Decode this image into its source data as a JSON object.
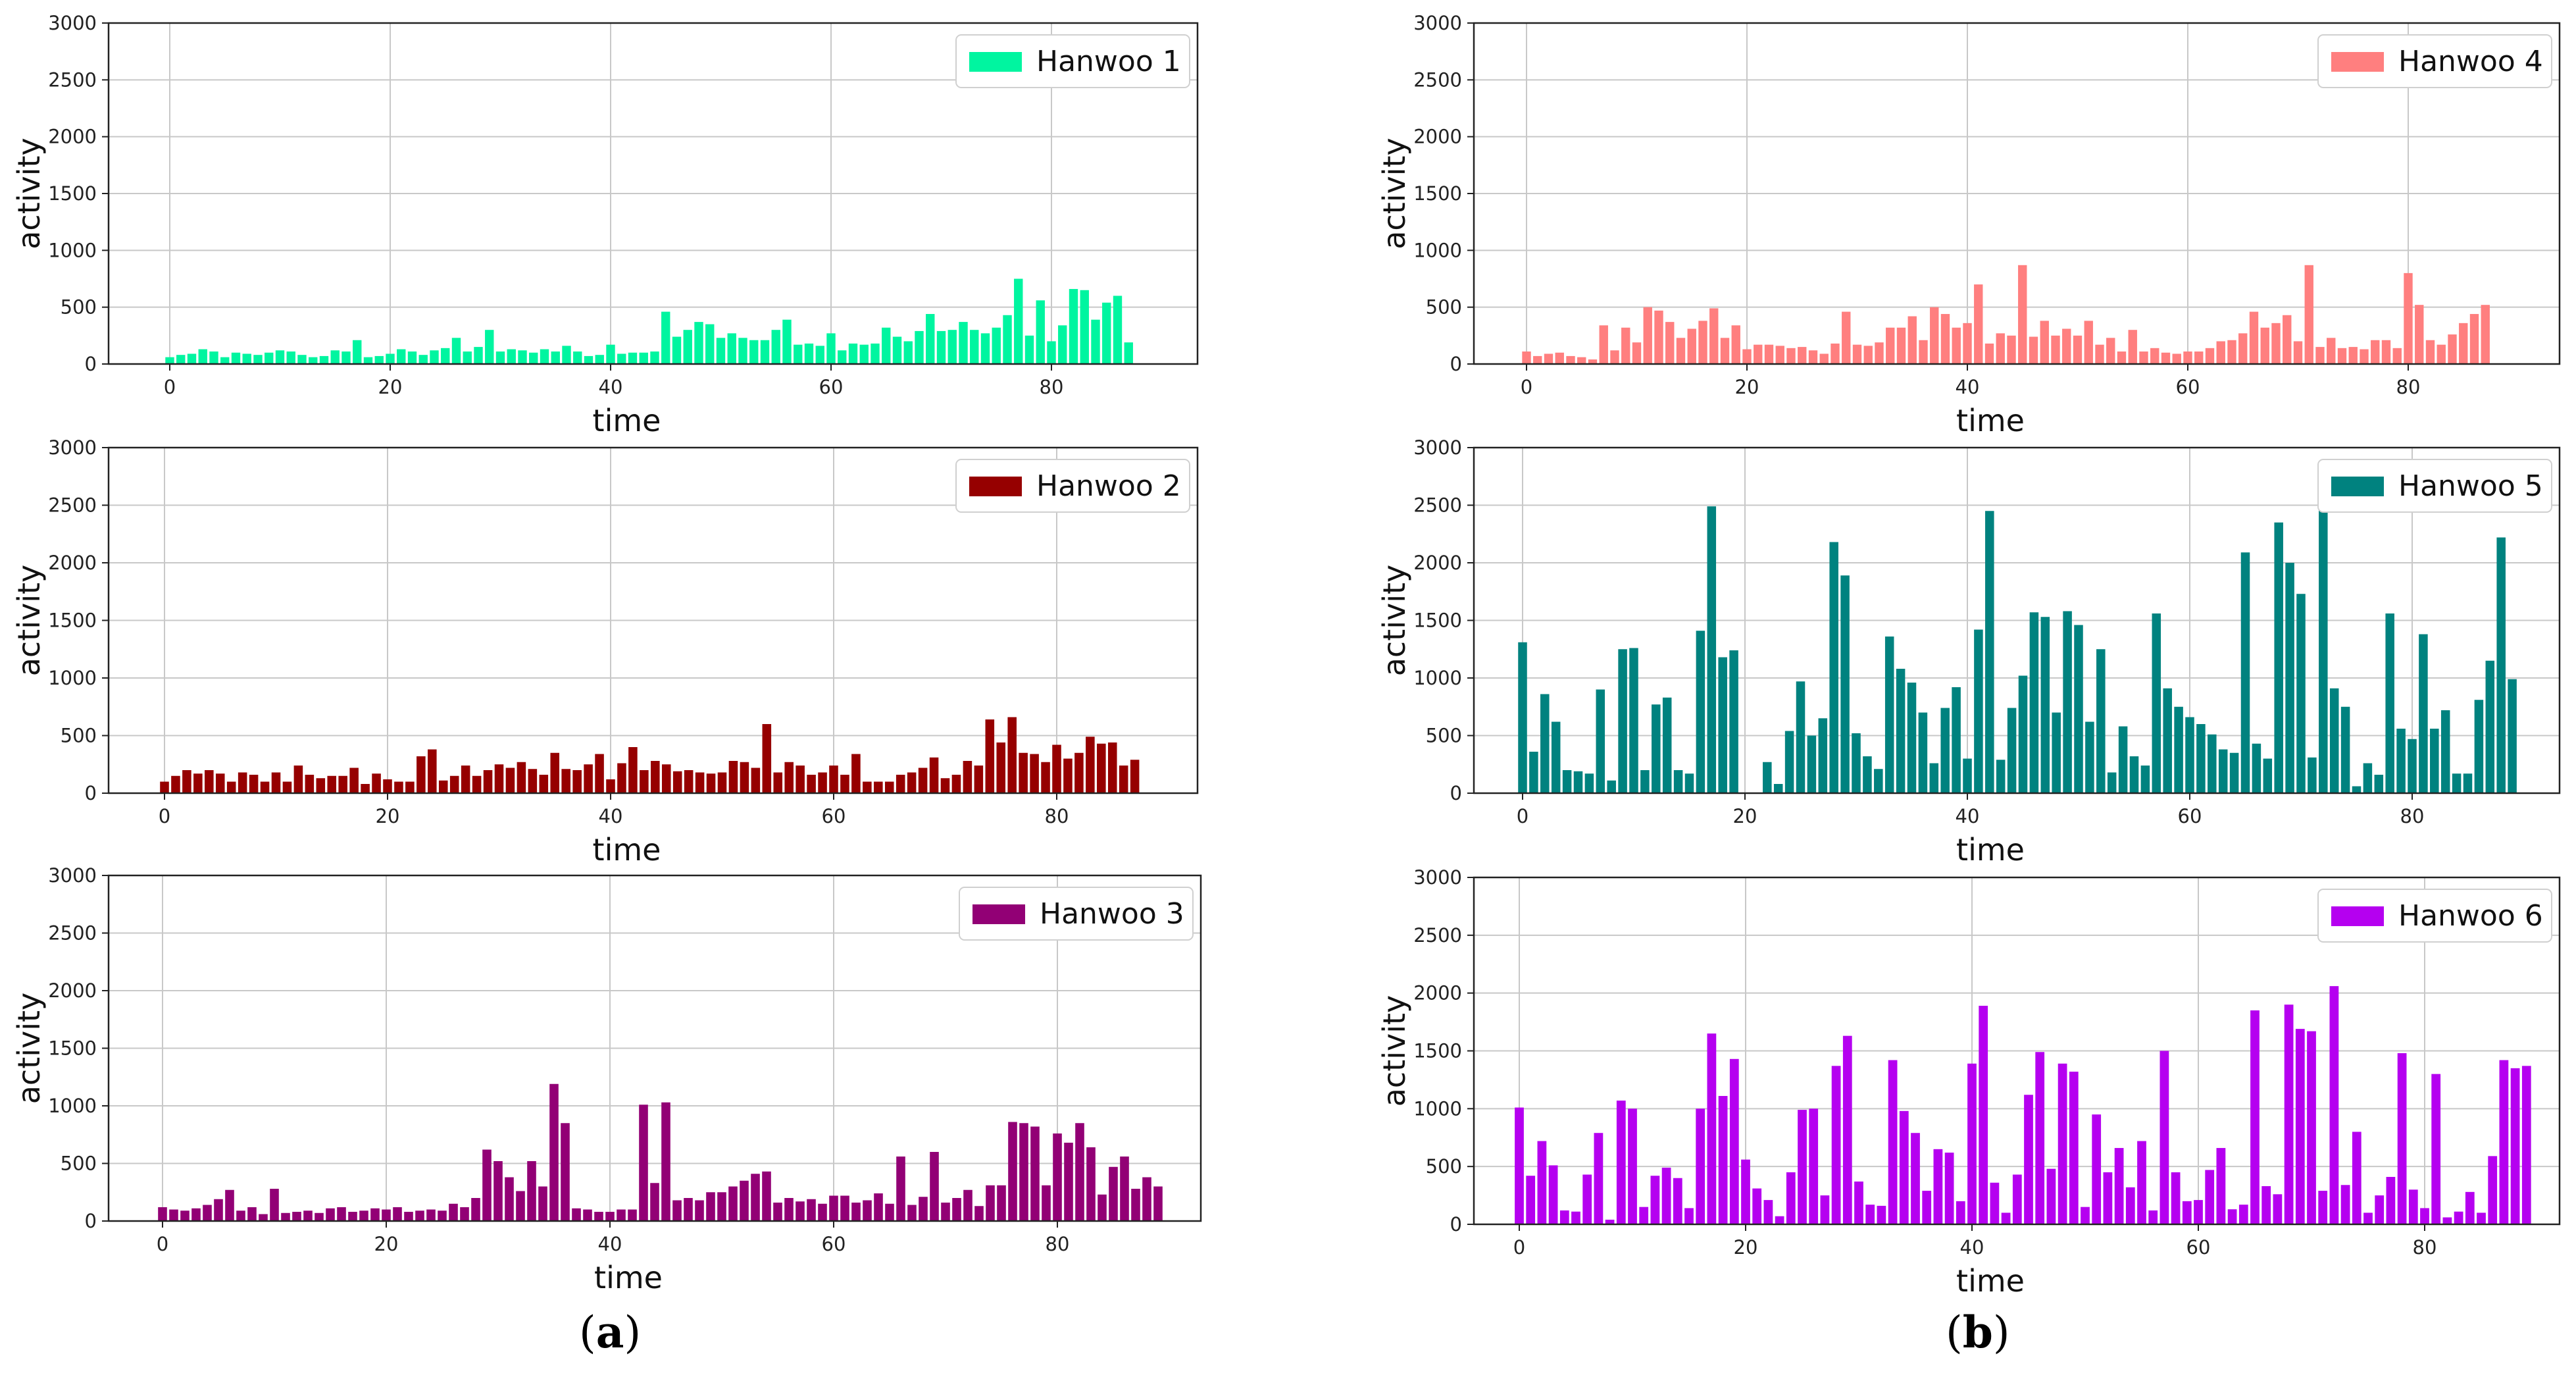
{
  "chart_data": [
    {
      "type": "bar",
      "legend": "Hanwoo 1",
      "color": "#00F5A0",
      "xlabel": "time",
      "ylabel": "activity",
      "ylim": [
        0,
        3000
      ],
      "yticks": [
        0,
        500,
        1000,
        1500,
        2000,
        2500,
        3000
      ],
      "xticks": [
        0,
        20,
        40,
        60,
        80
      ],
      "legend_position": "top-right",
      "grid": true,
      "values": [
        60,
        80,
        90,
        130,
        110,
        60,
        100,
        90,
        80,
        100,
        120,
        110,
        80,
        60,
        70,
        120,
        110,
        210,
        60,
        70,
        90,
        130,
        110,
        80,
        120,
        140,
        230,
        110,
        150,
        300,
        110,
        130,
        120,
        100,
        130,
        110,
        160,
        110,
        70,
        80,
        170,
        90,
        100,
        100,
        110,
        460,
        240,
        300,
        370,
        350,
        230,
        270,
        230,
        210,
        210,
        300,
        390,
        170,
        180,
        160,
        270,
        120,
        180,
        170,
        180,
        320,
        240,
        200,
        290,
        440,
        290,
        300,
        370,
        300,
        270,
        320,
        430,
        750,
        250,
        560,
        200,
        340,
        660,
        650,
        390,
        540,
        600,
        190
      ]
    },
    {
      "type": "bar",
      "legend": "Hanwoo 2",
      "color": "#960000",
      "xlabel": "time",
      "ylabel": "activity",
      "ylim": [
        0,
        3000
      ],
      "yticks": [
        0,
        500,
        1000,
        1500,
        2000,
        2500,
        3000
      ],
      "xticks": [
        0,
        20,
        40,
        60,
        80
      ],
      "legend_position": "top-right",
      "grid": true,
      "values": [
        100,
        150,
        200,
        170,
        200,
        170,
        100,
        180,
        160,
        100,
        180,
        100,
        240,
        160,
        130,
        150,
        150,
        220,
        80,
        170,
        120,
        100,
        100,
        320,
        380,
        110,
        150,
        240,
        150,
        200,
        250,
        220,
        270,
        210,
        160,
        350,
        210,
        200,
        250,
        340,
        120,
        260,
        400,
        200,
        280,
        250,
        190,
        200,
        180,
        170,
        180,
        280,
        270,
        220,
        600,
        180,
        270,
        240,
        160,
        180,
        240,
        160,
        340,
        100,
        100,
        100,
        160,
        180,
        220,
        310,
        130,
        160,
        280,
        240,
        640,
        440,
        660,
        350,
        340,
        270,
        420,
        300,
        350,
        490,
        430,
        440,
        240,
        290
      ]
    },
    {
      "type": "bar",
      "legend": "Hanwoo 3",
      "color": "#920075",
      "xlabel": "time",
      "ylabel": "activity",
      "ylim": [
        0,
        3000
      ],
      "yticks": [
        0,
        500,
        1000,
        1500,
        2000,
        2500,
        3000
      ],
      "xticks": [
        0,
        20,
        40,
        60,
        80
      ],
      "legend_position": "top-right",
      "grid": true,
      "values": [
        120,
        100,
        90,
        110,
        140,
        190,
        270,
        90,
        120,
        60,
        280,
        70,
        80,
        90,
        70,
        110,
        120,
        80,
        90,
        110,
        100,
        120,
        80,
        90,
        100,
        90,
        150,
        120,
        200,
        620,
        520,
        380,
        260,
        520,
        300,
        1190,
        850,
        110,
        100,
        80,
        80,
        100,
        100,
        1010,
        330,
        1030,
        180,
        200,
        180,
        250,
        250,
        300,
        350,
        410,
        430,
        160,
        200,
        170,
        190,
        150,
        220,
        220,
        160,
        180,
        240,
        150,
        560,
        140,
        210,
        600,
        160,
        200,
        270,
        130,
        310,
        310,
        860,
        850,
        820,
        310,
        760,
        680,
        850,
        640,
        230,
        470,
        560,
        280,
        380,
        300
      ]
    },
    {
      "type": "bar",
      "legend": "Hanwoo 4",
      "color": "#FF7F7F",
      "xlabel": "time",
      "ylabel": "activity",
      "ylim": [
        0,
        3000
      ],
      "yticks": [
        0,
        500,
        1000,
        1500,
        2000,
        2500,
        3000
      ],
      "xticks": [
        0,
        20,
        40,
        60,
        80
      ],
      "legend_position": "top-right",
      "grid": true,
      "values": [
        110,
        70,
        90,
        100,
        70,
        60,
        40,
        340,
        120,
        320,
        190,
        500,
        470,
        370,
        230,
        310,
        380,
        490,
        230,
        340,
        130,
        170,
        170,
        160,
        140,
        150,
        120,
        90,
        180,
        460,
        170,
        160,
        190,
        320,
        320,
        420,
        210,
        500,
        440,
        320,
        360,
        700,
        180,
        270,
        250,
        870,
        240,
        380,
        250,
        310,
        250,
        380,
        170,
        230,
        110,
        300,
        110,
        140,
        100,
        90,
        110,
        110,
        140,
        200,
        210,
        270,
        460,
        320,
        360,
        430,
        200,
        870,
        150,
        230,
        140,
        150,
        130,
        210,
        210,
        140,
        800,
        520,
        210,
        170,
        260,
        360,
        440,
        520
      ]
    },
    {
      "type": "bar",
      "legend": "Hanwoo 5",
      "color": "#00827F",
      "xlabel": "time",
      "ylabel": "activity",
      "ylim": [
        0,
        3000
      ],
      "yticks": [
        0,
        500,
        1000,
        1500,
        2000,
        2500,
        3000
      ],
      "xticks": [
        0,
        20,
        40,
        60,
        80
      ],
      "legend_position": "top-right",
      "grid": true,
      "values": [
        1310,
        360,
        860,
        620,
        200,
        190,
        170,
        900,
        110,
        1250,
        1260,
        200,
        770,
        830,
        200,
        170,
        1410,
        2490,
        1180,
        1240,
        0,
        0,
        270,
        80,
        540,
        970,
        500,
        650,
        2180,
        1890,
        520,
        320,
        210,
        1360,
        1080,
        960,
        700,
        260,
        740,
        920,
        300,
        1420,
        2450,
        290,
        740,
        1020,
        1570,
        1530,
        700,
        1580,
        1460,
        620,
        1250,
        180,
        580,
        320,
        240,
        1560,
        910,
        750,
        660,
        600,
        510,
        380,
        350,
        2090,
        430,
        300,
        2350,
        2000,
        1730,
        310,
        2600,
        910,
        750,
        60,
        260,
        160,
        1560,
        560,
        470,
        1380,
        560,
        720,
        170,
        170,
        810,
        1150,
        2220,
        990
      ]
    },
    {
      "type": "bar",
      "legend": "Hanwoo 6",
      "color": "#B500F0",
      "xlabel": "time",
      "ylabel": "activity",
      "ylim": [
        0,
        3000
      ],
      "yticks": [
        0,
        500,
        1000,
        1500,
        2000,
        2500,
        3000
      ],
      "xticks": [
        0,
        20,
        40,
        60,
        80
      ],
      "legend_position": "top-right",
      "grid": true,
      "values": [
        1010,
        420,
        720,
        510,
        120,
        110,
        430,
        790,
        40,
        1070,
        1000,
        150,
        420,
        490,
        400,
        140,
        1000,
        1650,
        1110,
        1430,
        560,
        310,
        210,
        70,
        450,
        990,
        1000,
        250,
        1370,
        1630,
        370,
        170,
        160,
        1420,
        980,
        790,
        290,
        650,
        620,
        200,
        1390,
        1890,
        360,
        100,
        430,
        1120,
        1490,
        480,
        1390,
        1320,
        150,
        950,
        450,
        660,
        320,
        720,
        120,
        1500,
        450,
        200,
        210,
        470,
        660,
        130,
        170,
        1850,
        330,
        260,
        1900,
        1690,
        1670,
        290,
        2060,
        340,
        800,
        100,
        250,
        410,
        1480,
        300,
        140,
        1300,
        60,
        110,
        280,
        100,
        590,
        1420,
        1350,
        1370
      ]
    }
  ],
  "panel_labels": [
    {
      "open": "(",
      "letter": "a",
      "close": ")"
    },
    {
      "open": "(",
      "letter": "b",
      "close": ")"
    }
  ]
}
